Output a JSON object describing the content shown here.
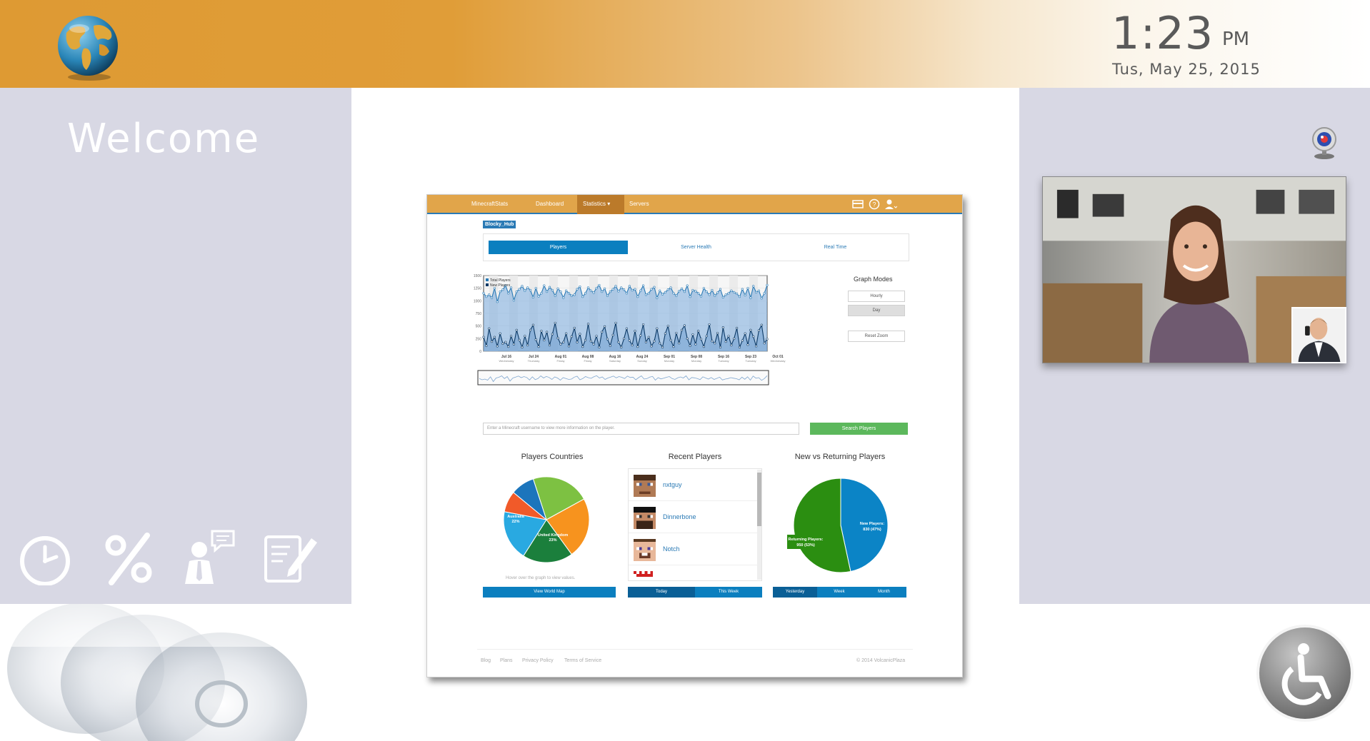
{
  "header": {
    "time": "1:23",
    "ampm": "PM",
    "date": "Tus, May 25, 2015"
  },
  "left": {
    "welcome": "Welcome",
    "tools": [
      "clock-icon",
      "percent-icon",
      "presenter-chat-icon",
      "edit-document-icon"
    ]
  },
  "right": {
    "webcam": "webcam-icon",
    "accessibility": "wheelchair-icon"
  },
  "dashboard": {
    "nav": {
      "brand": "MinecraftStats",
      "dashboard": "Dashboard",
      "statistics": "Statistics ▾",
      "servers": "Servers"
    },
    "server_tag": "Blocky_Hub",
    "tabs": {
      "players": "Players",
      "server_health": "Server Health",
      "real_time": "Real Time"
    },
    "graph_modes": {
      "title": "Graph Modes",
      "hourly": "Hourly",
      "day": "Day",
      "reset": "Reset Zoom"
    },
    "search": {
      "placeholder": "Enter a Minecraft username to view more information on the player.",
      "button": "Search Players"
    },
    "countries": {
      "title": "Players Countries",
      "hint": "Hover over the graph to view values.",
      "button": "View World Map"
    },
    "recent": {
      "title": "Recent Players",
      "players": [
        "nxtguy",
        "Dinnerbone",
        "Notch",
        "..."
      ],
      "buttons": [
        "Today",
        "This Week"
      ]
    },
    "new_vs_returning": {
      "title": "New vs Returning Players",
      "buttons": [
        "Yesterday",
        "Week",
        "Month"
      ]
    },
    "footer": {
      "links": [
        "Blog",
        "Plans",
        "Privacy Policy",
        "Terms of Service"
      ],
      "copyright": "© 2014 VolcanicPlaza"
    }
  },
  "chart_data": [
    {
      "type": "area",
      "legend": [
        "Total Players",
        "New Players"
      ],
      "legend_position": "top-left",
      "ylim": [
        0,
        1500
      ],
      "yticks": [
        "1500",
        "1250",
        "1000",
        "750",
        "500",
        "250",
        "0"
      ],
      "x_ticks": [
        {
          "date": "Jul 16",
          "day": "Wednesday"
        },
        {
          "date": "Jul 24",
          "day": "Thursday"
        },
        {
          "date": "Aug 01",
          "day": "Friday"
        },
        {
          "date": "Aug 08",
          "day": "Friday"
        },
        {
          "date": "Aug 16",
          "day": "Saturday"
        },
        {
          "date": "Aug 24",
          "day": "Sunday"
        },
        {
          "date": "Sep 01",
          "day": "Monday"
        },
        {
          "date": "Sep 08",
          "day": "Monday"
        },
        {
          "date": "Sep 16",
          "day": "Tuesday"
        },
        {
          "date": "Sep 23",
          "day": "Tuesday"
        },
        {
          "date": "Oct 01",
          "day": "Wednesday"
        }
      ],
      "series": [
        {
          "name": "Total Players",
          "color": "#2a7ab5",
          "values": [
            1150,
            1080,
            1120,
            1060,
            1250,
            980,
            1180,
            1220,
            1300,
            1150,
            1260,
            1010,
            1180,
            1230,
            1290,
            1200,
            1260,
            1210,
            1070,
            1250,
            1090,
            1150,
            1300,
            1180,
            1270,
            1210,
            1100,
            1240,
            1180,
            1060,
            1200,
            1150,
            1100,
            1120,
            1230,
            1280,
            1080,
            1150,
            1260,
            1200,
            1160,
            1250,
            1310,
            1180,
            1240,
            1100,
            1180,
            1230,
            1290,
            1190,
            1260,
            1220,
            1150,
            1290,
            1210,
            1230,
            1080,
            1200,
            1300,
            1120,
            1150,
            1230,
            1270,
            1060,
            1200,
            1130,
            1170,
            1220,
            1260,
            1150,
            1100,
            1190,
            1240,
            1180,
            1300,
            1080,
            1210,
            1190,
            1150,
            1090,
            1250,
            1180,
            1120,
            1210,
            1100,
            1160,
            1230,
            1070,
            1120,
            1150,
            1200,
            1170,
            1140,
            1080,
            1230,
            1110,
            1250,
            1060,
            1290,
            1170,
            1200,
            1050,
            1150,
            1310
          ]
        },
        {
          "name": "New Players",
          "color": "#0d3a66",
          "values": [
            280,
            110,
            450,
            190,
            280,
            100,
            350,
            150,
            180,
            90,
            300,
            140,
            420,
            220,
            80,
            300,
            120,
            420,
            520,
            230,
            90,
            400,
            220,
            380,
            120,
            340,
            560,
            260,
            140,
            180,
            350,
            100,
            290,
            460,
            180,
            340,
            90,
            220,
            540,
            200,
            140,
            300,
            80,
            380,
            490,
            240,
            110,
            320,
            560,
            180,
            80,
            250,
            450,
            210,
            120,
            400,
            90,
            310,
            530,
            180,
            280,
            100,
            200,
            450,
            160,
            80,
            350,
            500,
            220,
            90,
            360,
            160,
            420,
            510,
            250,
            110,
            330,
            140,
            400,
            240,
            90,
            300,
            530,
            200,
            160,
            360,
            80,
            470,
            190,
            300,
            120,
            250,
            460,
            80,
            210,
            350,
            130,
            420,
            290,
            100,
            410,
            520,
            160,
            240
          ]
        }
      ]
    },
    {
      "type": "pie",
      "title": "Players Countries",
      "slices": [
        {
          "label": "Australia",
          "value": 22,
          "color": "#7dc142"
        },
        {
          "label": "United Kingdom",
          "value": 23,
          "color": "#f7931e"
        },
        {
          "value": 19,
          "color": "#1b7f3c"
        },
        {
          "value": 19,
          "color": "#29a9e1"
        },
        {
          "value": 8,
          "color": "#f15a29"
        },
        {
          "value": 9,
          "color": "#1c75bc"
        }
      ],
      "labels_shown": [
        "Australia\n22%",
        "United Kingdom\n23%"
      ]
    },
    {
      "type": "pie",
      "title": "New vs Returning Players",
      "slices": [
        {
          "label": "New Players",
          "value": 830,
          "percent": 47,
          "color": "#0b84c6"
        },
        {
          "label": "Returning Players",
          "value": 950,
          "percent": 53,
          "color": "#2b8e11"
        }
      ],
      "labels_shown": [
        "New Players:\n830 (47%)",
        "Returning Players:\n950 (53%)"
      ]
    }
  ]
}
